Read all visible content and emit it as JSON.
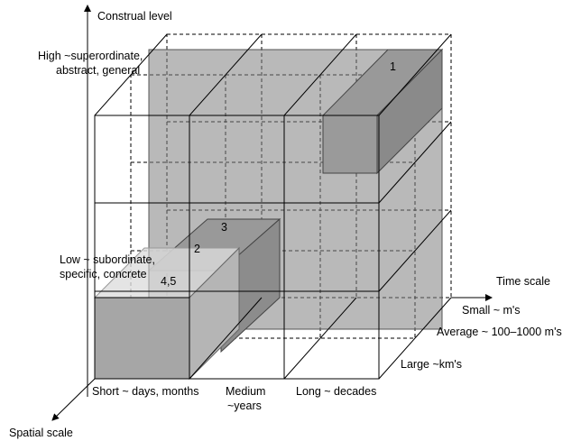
{
  "axes": {
    "vertical": "Construal level",
    "time": "Time scale",
    "spatial": "Spatial scale"
  },
  "construal_levels": {
    "high": [
      "High ~superordinate,",
      "abstract, general"
    ],
    "low": [
      "Low ~ subordinate,",
      "specific, concrete"
    ]
  },
  "time_levels": [
    "Short ~ days, months",
    [
      "Medium",
      "~years"
    ],
    "Long ~ decades"
  ],
  "spatial_levels": [
    "Small ~ m's",
    "Average ~ 100–1000  m's",
    "Large ~km's"
  ],
  "boxes": [
    "1",
    "2",
    "3",
    "4,5"
  ]
}
